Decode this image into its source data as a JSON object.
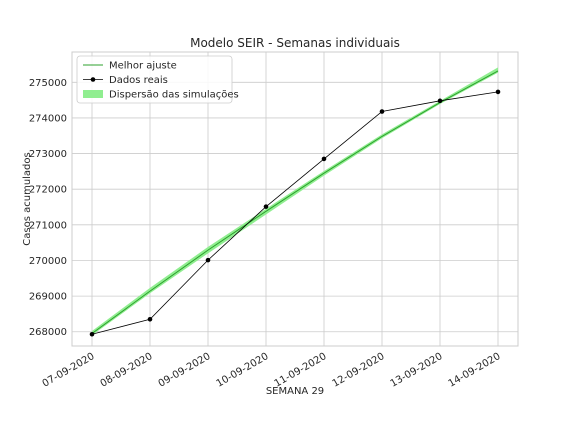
{
  "chart_data": {
    "type": "line",
    "title": "Modelo SEIR - Semanas individuais",
    "xlabel": "SEMANA 29",
    "ylabel": "Casos acumulados",
    "categories": [
      "07-09-2020",
      "08-09-2020",
      "09-09-2020",
      "10-09-2020",
      "11-09-2020",
      "12-09-2020",
      "13-09-2020",
      "14-09-2020"
    ],
    "ylim": [
      267600,
      275850
    ],
    "yticks": [
      268000,
      269000,
      270000,
      271000,
      272000,
      273000,
      274000,
      275000
    ],
    "ytick_labels": [
      "268000",
      "269000",
      "270000",
      "271000",
      "272000",
      "273000",
      "274000",
      "275000"
    ],
    "grid": true,
    "legend_position": "top-left",
    "series": [
      {
        "name": "Melhor ajuste",
        "kind": "line",
        "color": "#2ca02c",
        "values": [
          267950,
          269140,
          270290,
          271380,
          272450,
          273480,
          274430,
          275320
        ]
      },
      {
        "name": "Dados reais",
        "kind": "line-marker",
        "color": "#000000",
        "values": [
          267930,
          268350,
          270010,
          271510,
          272850,
          274180,
          274480,
          274730
        ]
      },
      {
        "name": "Dispersão das simulações",
        "kind": "band",
        "color": "#90ee90",
        "lower": [
          267900,
          269080,
          270200,
          271290,
          272380,
          273430,
          274390,
          275270
        ],
        "upper": [
          268020,
          269230,
          270380,
          271450,
          272510,
          273540,
          274480,
          275420
        ]
      }
    ]
  }
}
